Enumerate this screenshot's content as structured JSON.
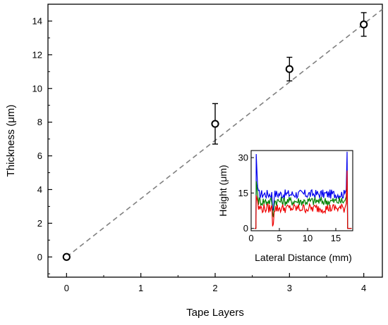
{
  "chart_data": [
    {
      "type": "scatter",
      "title": "",
      "xlabel": "Tape Layers",
      "ylabel": "Thickness (μm)",
      "xlim": [
        -0.25,
        4.25
      ],
      "ylim": [
        -1.2,
        15.0
      ],
      "xticks": [
        "0",
        "1",
        "2",
        "3",
        "4"
      ],
      "yticks": [
        "0",
        "2",
        "4",
        "6",
        "8",
        "10",
        "12",
        "14"
      ],
      "grid": false,
      "marker": "open-circle",
      "points": [
        {
          "x": 0,
          "y": 0.0,
          "err": 0.05
        },
        {
          "x": 2,
          "y": 7.9,
          "err": 1.2
        },
        {
          "x": 3,
          "y": 11.15,
          "err": 0.7
        },
        {
          "x": 4,
          "y": 13.8,
          "err": 0.7
        }
      ],
      "fit_line": {
        "style": "dashed",
        "color": "#808080",
        "x": [
          0,
          4.25
        ],
        "y": [
          0,
          14.7
        ]
      }
    },
    {
      "type": "line",
      "title": "",
      "xlabel": "Lateral Distance (mm)",
      "ylabel": "Height (μm)",
      "xlim": [
        0,
        18
      ],
      "ylim": [
        -1,
        33
      ],
      "xticks": [
        "0",
        "5",
        "10",
        "15"
      ],
      "yticks": [
        "0",
        "15",
        "30"
      ],
      "grid": false,
      "series": [
        {
          "color": "#0000ee",
          "base": 14.5,
          "edge_peak": 31.5,
          "edge_peak_right": 32.5
        },
        {
          "color": "#008000",
          "base": 11.5,
          "edge_peak": 20.0,
          "edge_peak_right": 20.0
        },
        {
          "color": "#ee0000",
          "base": 8.5,
          "edge_peak": 14.0,
          "edge_peak_right": 24.5
        }
      ],
      "profile_x_range": [
        0.9,
        17.0
      ]
    }
  ]
}
